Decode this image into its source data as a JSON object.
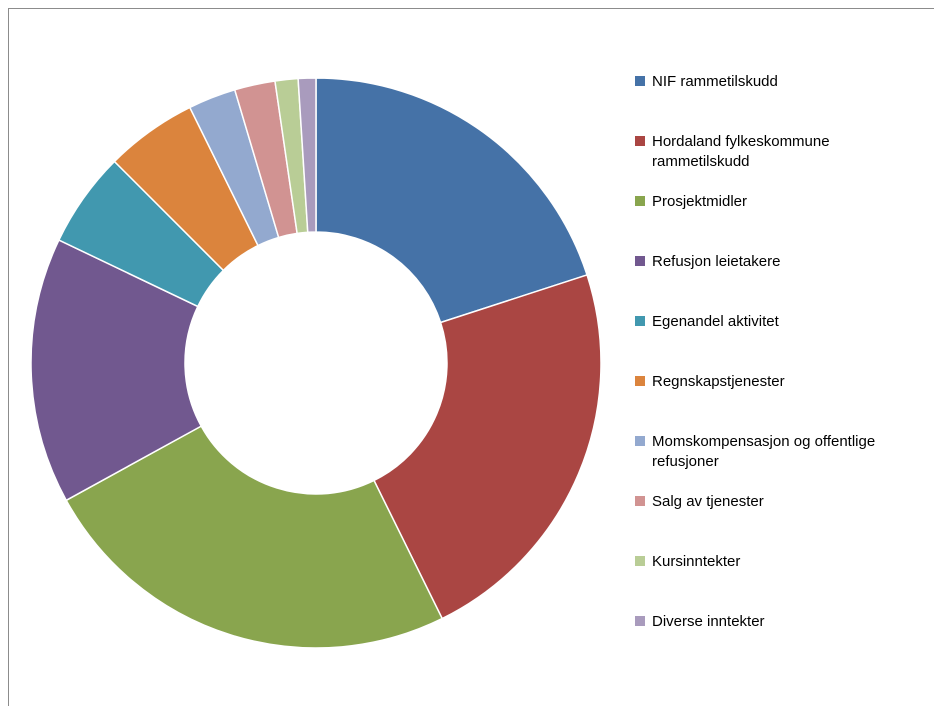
{
  "chart_data": {
    "type": "donut",
    "categories": [
      "NIF rammetilskudd",
      "Hordaland fylkeskommune rammetilskudd",
      "Prosjektmidler",
      "Refusjon leietakere",
      "Egenandel aktivitet",
      "Regnskapstjenester",
      "Momskompensasjon og offentlige refusjoner",
      "Salg av tjenester",
      "Kursinntekter",
      "Diverse inntekter"
    ],
    "values": [
      20,
      22.7,
      24.3,
      15.1,
      5.4,
      5.2,
      2.7,
      2.3,
      1.3,
      1.0
    ],
    "colors": [
      "#4572a7",
      "#aa4643",
      "#89a54e",
      "#71588f",
      "#4198af",
      "#db843d",
      "#93a9cf",
      "#d19392",
      "#b9cd96",
      "#a99bbd"
    ],
    "legend": "right"
  }
}
